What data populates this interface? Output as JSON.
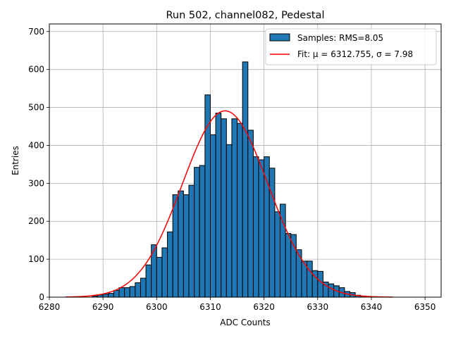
{
  "chart_data": {
    "type": "bar",
    "title": "Run 502, channel082, Pedestal",
    "xlabel": "ADC Counts",
    "ylabel": "Entries",
    "xlim": [
      6280,
      6353
    ],
    "ylim": [
      0,
      720
    ],
    "xticks": [
      6280,
      6290,
      6300,
      6310,
      6320,
      6330,
      6340,
      6350
    ],
    "yticks": [
      0,
      100,
      200,
      300,
      400,
      500,
      600,
      700
    ],
    "grid": true,
    "legend_position": "top-right",
    "bin_width": 1,
    "histogram": {
      "name": "Samples: RMS=8.05",
      "color": "#1f77b4",
      "bin_start": 6288,
      "values": [
        3,
        6,
        8,
        10,
        18,
        25,
        25,
        28,
        38,
        50,
        85,
        138,
        105,
        130,
        172,
        270,
        280,
        270,
        295,
        342,
        347,
        533,
        428,
        485,
        470,
        402,
        470,
        458,
        620,
        440,
        370,
        362,
        370,
        340,
        225,
        245,
        168,
        165,
        125,
        95,
        95,
        70,
        68,
        40,
        35,
        30,
        25,
        15,
        12,
        5,
        3,
        2,
        1,
        1,
        1
      ]
    },
    "fit": {
      "name": "Fit: μ = 6312.755, σ = 7.98",
      "color": "#ff0000",
      "mu": 6312.755,
      "sigma": 7.98,
      "amplitude": 491,
      "x_range": [
        6283,
        6344
      ]
    }
  }
}
